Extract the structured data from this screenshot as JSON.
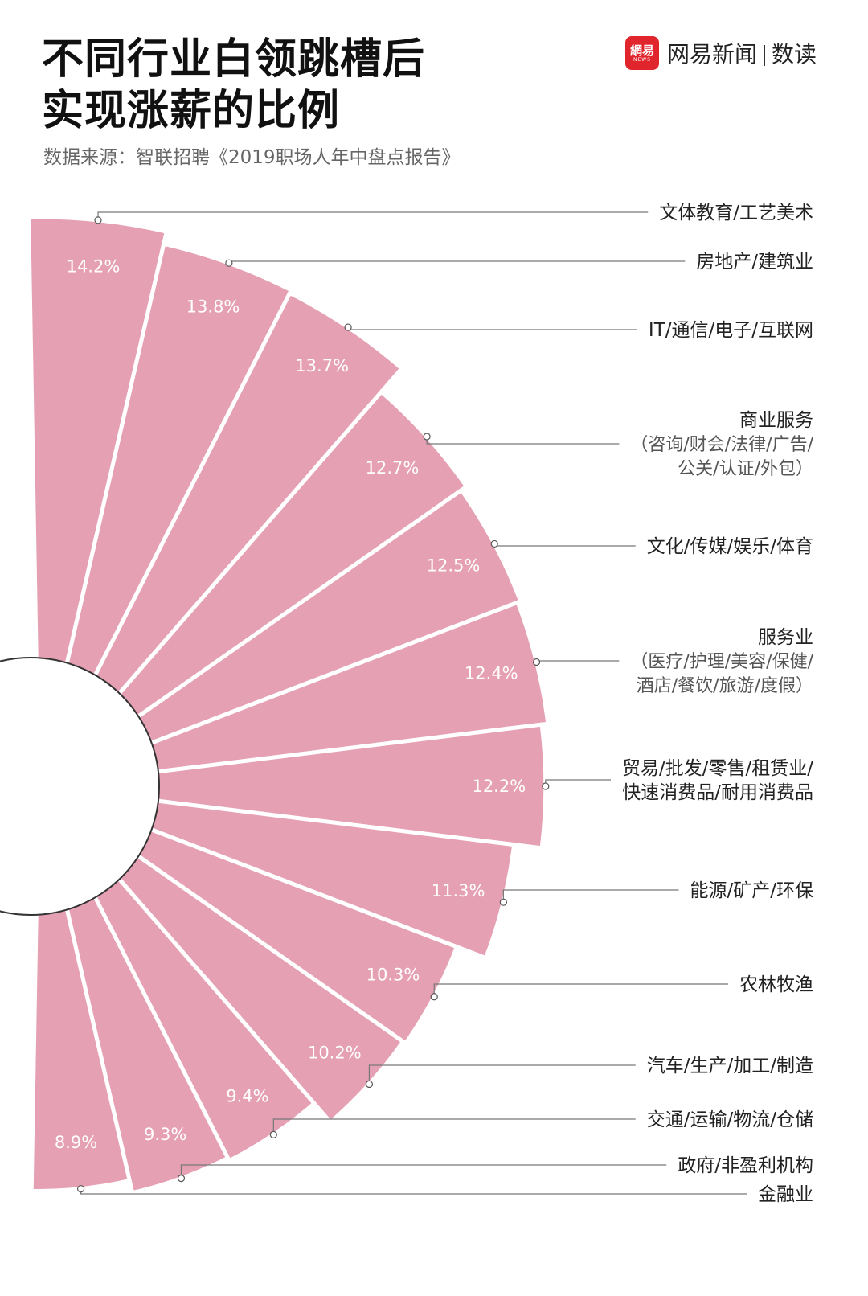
{
  "header": {
    "title_line1": "不同行业白领跳槽后",
    "title_line2": "实现涨薪的比例",
    "source": "数据来源：智联招聘《2019职场人年中盘点报告》"
  },
  "brand": {
    "logo_text": "網易",
    "logo_sub": "NEWS",
    "name": "网易新闻",
    "section": "数读",
    "color": "#e0262c"
  },
  "chart_data": {
    "type": "bar",
    "style": "radial",
    "color": "#e5a0b4",
    "categories": [
      [
        "文体教育/工艺美术"
      ],
      [
        "房地产/建筑业"
      ],
      [
        "IT/通信/电子/互联网"
      ],
      [
        "商业服务",
        "（咨询/财会/法律/广告/",
        "公关/认证/外包）"
      ],
      [
        "文化/传媒/娱乐/体育"
      ],
      [
        "服务业",
        "（医疗/护理/美容/保健/",
        "酒店/餐饮/旅游/度假）"
      ],
      [
        "贸易/批发/零售/租赁业/",
        "快速消费品/耐用消费品"
      ],
      [
        "能源/矿产/环保"
      ],
      [
        "农林牧渔"
      ],
      [
        "汽车/生产/加工/制造"
      ],
      [
        "交通/运输/物流/仓储"
      ],
      [
        "政府/非盈利机构"
      ],
      [
        "金融业"
      ]
    ],
    "values": [
      14.2,
      13.8,
      13.7,
      12.7,
      12.5,
      12.4,
      12.2,
      11.3,
      10.3,
      10.2,
      9.4,
      9.3,
      8.9
    ],
    "labels": [
      "14.2%",
      "13.8%",
      "13.7%",
      "12.7%",
      "12.5%",
      "12.4%",
      "12.2%",
      "11.3%",
      "10.3%",
      "10.2%",
      "9.4%",
      "9.3%",
      "8.9%"
    ],
    "unit": "%"
  }
}
